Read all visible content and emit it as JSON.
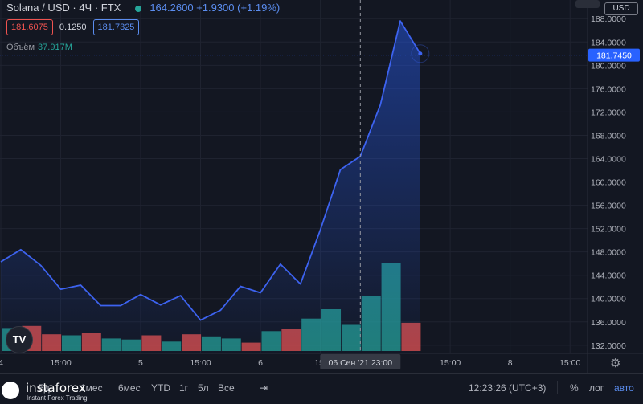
{
  "header": {
    "symbol": "Solana / USD · 4Ч · FTX",
    "price_change": "164.2600  +1.9300 (+1.19%)",
    "bid": "181.6075",
    "spread": "0.1250",
    "ask": "181.7325",
    "volume_label": "Объём",
    "volume_value": "37.917M",
    "currency": "USD"
  },
  "colors": {
    "background": "#131722",
    "line": "#3d63f0",
    "volume_up": "#26a69a",
    "volume_down": "#ef5350",
    "current_price": "#2962ff"
  },
  "chart_data": {
    "type": "area",
    "series": [
      {
        "values": [
          146.3,
          148.4,
          145.7,
          141.6,
          142.3,
          138.8,
          138.8,
          140.7,
          138.9,
          140.5,
          136.3,
          138.0,
          142.1,
          141.0,
          145.9,
          142.5,
          151.8,
          162.1,
          164.4,
          173.2,
          187.6,
          182.0
        ]
      }
    ],
    "volume_bars": [
      {
        "v": 0.22,
        "up": true
      },
      {
        "v": 0.24,
        "up": false
      },
      {
        "v": 0.16,
        "up": false
      },
      {
        "v": 0.15,
        "up": true
      },
      {
        "v": 0.17,
        "up": false
      },
      {
        "v": 0.12,
        "up": true
      },
      {
        "v": 0.11,
        "up": true
      },
      {
        "v": 0.15,
        "up": false
      },
      {
        "v": 0.09,
        "up": true
      },
      {
        "v": 0.16,
        "up": false
      },
      {
        "v": 0.14,
        "up": true
      },
      {
        "v": 0.12,
        "up": true
      },
      {
        "v": 0.08,
        "up": false
      },
      {
        "v": 0.19,
        "up": true
      },
      {
        "v": 0.21,
        "up": false
      },
      {
        "v": 0.31,
        "up": true
      },
      {
        "v": 0.4,
        "up": true
      },
      {
        "v": 0.25,
        "up": true
      },
      {
        "v": 0.53,
        "up": true
      },
      {
        "v": 0.84,
        "up": true
      },
      {
        "v": 0.27,
        "up": false
      }
    ],
    "ylim": [
      130.6,
      191.2
    ],
    "y_ticks": [
      "132.0000",
      "136.0000",
      "140.0000",
      "144.0000",
      "148.0000",
      "152.0000",
      "156.0000",
      "160.0000",
      "164.0000",
      "168.0000",
      "172.0000",
      "176.0000",
      "180.0000",
      "184.0000",
      "188.0000"
    ],
    "current_price": 181.745,
    "current_price_label": "181.7450",
    "x_ticks": [
      {
        "label": "4",
        "i": 0
      },
      {
        "label": "15:00",
        "i": 3
      },
      {
        "label": "5",
        "i": 7
      },
      {
        "label": "15:00",
        "i": 10
      },
      {
        "label": "6",
        "i": 13
      },
      {
        "label": "15:",
        "i": 16
      },
      {
        "label": "15:00",
        "i": 22.5
      },
      {
        "label": "8",
        "i": 25.5
      },
      {
        "label": "15:00",
        "i": 28.5
      }
    ],
    "crosshair": {
      "i": 18,
      "label": "06 Сен '21   23:00"
    },
    "grid": true
  },
  "bottom_bar": {
    "ranges": [
      "5д",
      "1мес",
      "3мес",
      "6мес",
      "YTD",
      "1г",
      "5л",
      "Все"
    ],
    "clock": "12:23:26 (UTC+3)",
    "percent": "%",
    "log": "лог",
    "auto": "авто"
  },
  "logo": {
    "name": "instaforex",
    "tagline": "Instant Forex Trading"
  },
  "tv_badge": "TV"
}
